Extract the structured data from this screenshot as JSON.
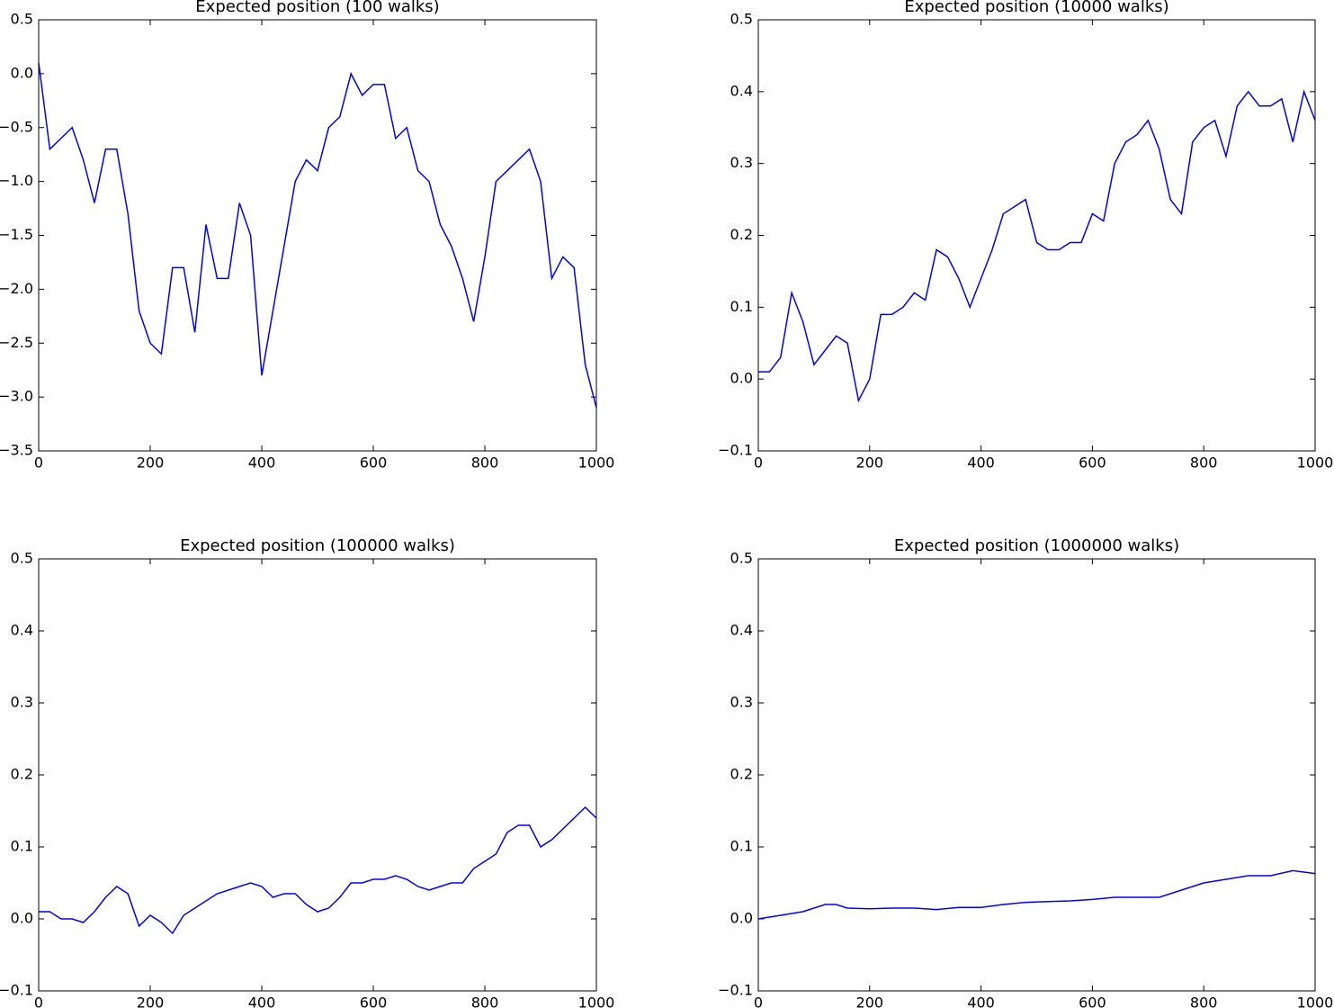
{
  "chart_data": [
    {
      "type": "line",
      "title": "Expected position (100 walks)",
      "color": "#0000ff",
      "x": [
        0,
        20,
        40,
        60,
        80,
        100,
        120,
        140,
        160,
        180,
        200,
        220,
        240,
        260,
        280,
        300,
        320,
        340,
        360,
        380,
        400,
        420,
        440,
        460,
        480,
        500,
        520,
        540,
        560,
        580,
        600,
        620,
        640,
        660,
        680,
        700,
        720,
        740,
        760,
        780,
        800,
        820,
        840,
        860,
        880,
        900,
        920,
        940,
        960,
        980,
        1000
      ],
      "values": [
        0.1,
        -0.7,
        -0.6,
        -0.5,
        -0.8,
        -1.2,
        -0.7,
        -0.7,
        -1.3,
        -2.2,
        -2.5,
        -2.6,
        -1.8,
        -1.8,
        -2.4,
        -1.4,
        -1.9,
        -1.9,
        -1.2,
        -1.5,
        -2.8,
        -2.2,
        -1.6,
        -1.0,
        -0.8,
        -0.9,
        -0.5,
        -0.4,
        0.0,
        -0.2,
        -0.1,
        -0.1,
        -0.6,
        -0.5,
        -0.9,
        -1.0,
        -1.4,
        -1.6,
        -1.9,
        -2.3,
        -1.7,
        -1.0,
        -0.9,
        -0.8,
        -0.7,
        -1.0,
        -1.9,
        -1.7,
        -1.8,
        -2.7,
        -3.1
      ],
      "xlim": [
        0,
        1000
      ],
      "ylim": [
        -3.5,
        0.5
      ],
      "xticks": [
        0,
        200,
        400,
        600,
        800,
        1000
      ],
      "yticks": [
        {
          "value": -3.5,
          "label": "−3.5"
        },
        {
          "value": -3,
          "label": "−3.0"
        },
        {
          "value": -2.5,
          "label": "−2.5"
        },
        {
          "value": -2,
          "label": "−2.0"
        },
        {
          "value": -1.5,
          "label": "−1.5"
        },
        {
          "value": -1,
          "label": "−1.0"
        },
        {
          "value": -0.5,
          "label": "−0.5"
        },
        {
          "value": 0,
          "label": "0.0"
        },
        0.5
      ]
    },
    {
      "type": "line",
      "title": "Expected position (10000 walks)",
      "color": "#0000ff",
      "x": [
        0,
        20,
        40,
        60,
        80,
        100,
        120,
        140,
        160,
        180,
        200,
        220,
        240,
        260,
        280,
        300,
        320,
        340,
        360,
        380,
        400,
        420,
        440,
        460,
        480,
        500,
        520,
        540,
        560,
        580,
        600,
        620,
        640,
        660,
        680,
        700,
        720,
        740,
        760,
        780,
        800,
        820,
        840,
        860,
        880,
        900,
        920,
        940,
        960,
        980,
        1000
      ],
      "values": [
        0.01,
        0.01,
        0.03,
        0.12,
        0.08,
        0.02,
        0.04,
        0.06,
        0.05,
        -0.03,
        0.0,
        0.09,
        0.09,
        0.1,
        0.12,
        0.11,
        0.18,
        0.17,
        0.14,
        0.1,
        0.14,
        0.18,
        0.23,
        0.24,
        0.25,
        0.19,
        0.18,
        0.18,
        0.19,
        0.19,
        0.23,
        0.22,
        0.3,
        0.33,
        0.34,
        0.36,
        0.32,
        0.25,
        0.23,
        0.33,
        0.35,
        0.36,
        0.31,
        0.38,
        0.4,
        0.38,
        0.38,
        0.39,
        0.33,
        0.4,
        0.36
      ],
      "xlim": [
        0,
        1000
      ],
      "ylim": [
        -0.1,
        0.5
      ],
      "xticks": [
        0,
        200,
        400,
        600,
        800,
        1000
      ],
      "yticks": [
        {
          "value": -0.1,
          "label": "−0.1"
        },
        {
          "value": 0,
          "label": "0.0"
        },
        0.1,
        0.2,
        0.3,
        0.4,
        0.5
      ]
    },
    {
      "type": "line",
      "title": "Expected position (100000 walks)",
      "color": "#0000ff",
      "x": [
        0,
        20,
        40,
        60,
        80,
        100,
        120,
        140,
        160,
        180,
        200,
        220,
        240,
        260,
        280,
        300,
        320,
        340,
        360,
        380,
        400,
        420,
        440,
        460,
        480,
        500,
        520,
        540,
        560,
        580,
        600,
        620,
        640,
        660,
        680,
        700,
        720,
        740,
        760,
        780,
        800,
        820,
        840,
        860,
        880,
        900,
        920,
        940,
        960,
        980,
        1000
      ],
      "values": [
        0.01,
        0.01,
        0.0,
        0.0,
        -0.005,
        0.01,
        0.03,
        0.045,
        0.035,
        -0.01,
        0.005,
        -0.005,
        -0.02,
        0.005,
        0.015,
        0.025,
        0.035,
        0.04,
        0.045,
        0.05,
        0.045,
        0.03,
        0.035,
        0.035,
        0.02,
        0.01,
        0.015,
        0.03,
        0.05,
        0.05,
        0.055,
        0.055,
        0.06,
        0.055,
        0.045,
        0.04,
        0.045,
        0.05,
        0.05,
        0.07,
        0.08,
        0.09,
        0.12,
        0.13,
        0.13,
        0.1,
        0.11,
        0.125,
        0.14,
        0.155,
        0.14
      ],
      "xlim": [
        0,
        1000
      ],
      "ylim": [
        -0.1,
        0.5
      ],
      "xticks": [
        0,
        200,
        400,
        600,
        800,
        1000
      ],
      "yticks": [
        {
          "value": -0.1,
          "label": "−0.1"
        },
        {
          "value": 0,
          "label": "0.0"
        },
        0.1,
        0.2,
        0.3,
        0.4,
        0.5
      ]
    },
    {
      "type": "line",
      "title": "Expected position (1000000 walks)",
      "color": "#0000ff",
      "x": [
        0,
        40,
        80,
        120,
        140,
        160,
        200,
        240,
        280,
        320,
        360,
        400,
        440,
        480,
        520,
        560,
        600,
        640,
        680,
        720,
        760,
        800,
        840,
        880,
        920,
        960,
        1000
      ],
      "values": [
        0.0,
        0.005,
        0.01,
        0.02,
        0.02,
        0.015,
        0.014,
        0.015,
        0.015,
        0.013,
        0.016,
        0.016,
        0.02,
        0.023,
        0.024,
        0.025,
        0.027,
        0.03,
        0.03,
        0.03,
        0.04,
        0.05,
        0.055,
        0.06,
        0.06,
        0.067,
        0.063
      ],
      "xlim": [
        0,
        1000
      ],
      "ylim": [
        -0.1,
        0.5
      ],
      "xticks": [
        0,
        200,
        400,
        600,
        800,
        1000
      ],
      "yticks": [
        {
          "value": -0.1,
          "label": "−0.1"
        },
        {
          "value": 0,
          "label": "0.0"
        },
        0.1,
        0.2,
        0.3,
        0.4,
        0.5
      ]
    }
  ]
}
